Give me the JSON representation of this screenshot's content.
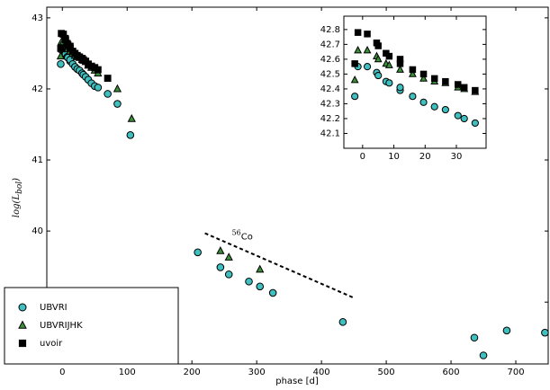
{
  "chart_data": [
    {
      "type": "scatter",
      "ylabel": {
        "main": "log(L",
        "sub": "bol",
        "end": ")"
      },
      "xlabel": "phase [d]",
      "xlim": [
        -24,
        750
      ],
      "ylim": [
        38.13,
        43.15
      ],
      "xticks": [
        0,
        100,
        200,
        300,
        400,
        500,
        600,
        700
      ],
      "yticks": [
        39,
        40,
        41,
        42,
        43
      ],
      "legend": "lower left",
      "annotation": {
        "sup": "56",
        "text": "Co",
        "x": [
          220,
          450
        ],
        "y": [
          39.97,
          39.06
        ]
      },
      "series": [
        {
          "name": "UBVRI",
          "color": "#3fbfbf",
          "marker": "circle",
          "x": [
            -2.5,
            -1.5,
            1.5,
            4.5,
            5,
            7.5,
            8.5,
            12,
            12,
            16,
            19.5,
            23,
            26.5,
            30.5,
            32.5,
            36,
            40,
            45,
            50,
            55,
            70,
            85,
            105,
            209,
            244,
            257,
            288,
            305,
            325,
            433,
            636,
            650,
            686,
            745
          ],
          "values": [
            42.35,
            42.55,
            42.55,
            42.51,
            42.49,
            42.45,
            42.44,
            42.39,
            42.41,
            42.35,
            42.31,
            42.28,
            42.26,
            42.22,
            42.2,
            42.17,
            42.13,
            42.08,
            42.04,
            42.02,
            41.93,
            41.79,
            41.35,
            39.7,
            39.49,
            39.39,
            39.29,
            39.22,
            39.13,
            38.72,
            38.5,
            38.25,
            38.6,
            38.57
          ]
        },
        {
          "name": "UBVRIJHK",
          "color": "#3a8f3a",
          "marker": "triangle",
          "x": [
            -2.5,
            -1.5,
            1.5,
            4.5,
            5,
            7.5,
            8.5,
            12,
            16,
            19.5,
            23,
            26.5,
            30.5,
            32.5,
            36,
            40,
            45,
            50,
            55,
            85,
            107,
            244,
            257,
            305
          ],
          "values": [
            42.46,
            42.66,
            42.66,
            42.62,
            42.6,
            42.57,
            42.56,
            42.53,
            42.5,
            42.47,
            42.45,
            42.44,
            42.41,
            42.4,
            42.38,
            42.33,
            42.3,
            42.26,
            42.22,
            42.0,
            41.58,
            39.72,
            39.63,
            39.46
          ]
        },
        {
          "name": "uvoir",
          "color": "#000000",
          "marker": "square",
          "x": [
            -2.5,
            -1.5,
            1.5,
            4.5,
            5,
            7.5,
            8.5,
            12,
            12,
            16,
            19.5,
            23,
            26.5,
            30.5,
            32.5,
            36,
            40,
            45,
            50,
            55,
            70
          ],
          "values": [
            42.57,
            42.78,
            42.77,
            42.71,
            42.69,
            42.64,
            42.62,
            42.6,
            42.57,
            42.53,
            42.5,
            42.47,
            42.45,
            42.43,
            42.41,
            42.39,
            42.35,
            42.32,
            42.3,
            42.27,
            42.15
          ]
        }
      ]
    },
    {
      "type": "scatter",
      "xlim": [
        -6,
        39.5
      ],
      "ylim": [
        42.0,
        42.89
      ],
      "xticks": [
        0,
        10,
        20,
        30
      ],
      "yticks": [
        42.1,
        42.2,
        42.3,
        42.4,
        42.5,
        42.6,
        42.7,
        42.8
      ],
      "series": [
        {
          "color": "#3fbfbf",
          "marker": "circle",
          "x": [
            -2.5,
            -1.5,
            1.5,
            4.5,
            5,
            7.5,
            8.5,
            12,
            12,
            16,
            19.5,
            23,
            26.5,
            30.5,
            32.5,
            36
          ],
          "values": [
            42.35,
            42.55,
            42.55,
            42.51,
            42.49,
            42.45,
            42.44,
            42.39,
            42.41,
            42.35,
            42.31,
            42.28,
            42.26,
            42.22,
            42.2,
            42.17
          ]
        },
        {
          "color": "#3a8f3a",
          "marker": "triangle",
          "x": [
            -2.5,
            -1.5,
            1.5,
            4.5,
            5,
            7.5,
            8.5,
            12,
            16,
            19.5,
            23,
            26.5,
            30.5,
            32.5,
            36
          ],
          "values": [
            42.46,
            42.66,
            42.66,
            42.62,
            42.6,
            42.57,
            42.56,
            42.53,
            42.5,
            42.47,
            42.45,
            42.44,
            42.41,
            42.4,
            42.38
          ]
        },
        {
          "color": "#000000",
          "marker": "square",
          "x": [
            -2.5,
            -1.5,
            1.5,
            4.5,
            5,
            7.5,
            8.5,
            12,
            12,
            16,
            19.5,
            23,
            26.5,
            30.5,
            32.5,
            36
          ],
          "values": [
            42.57,
            42.78,
            42.77,
            42.71,
            42.69,
            42.64,
            42.62,
            42.6,
            42.57,
            42.53,
            42.5,
            42.47,
            42.45,
            42.43,
            42.41,
            42.39
          ]
        }
      ]
    }
  ]
}
